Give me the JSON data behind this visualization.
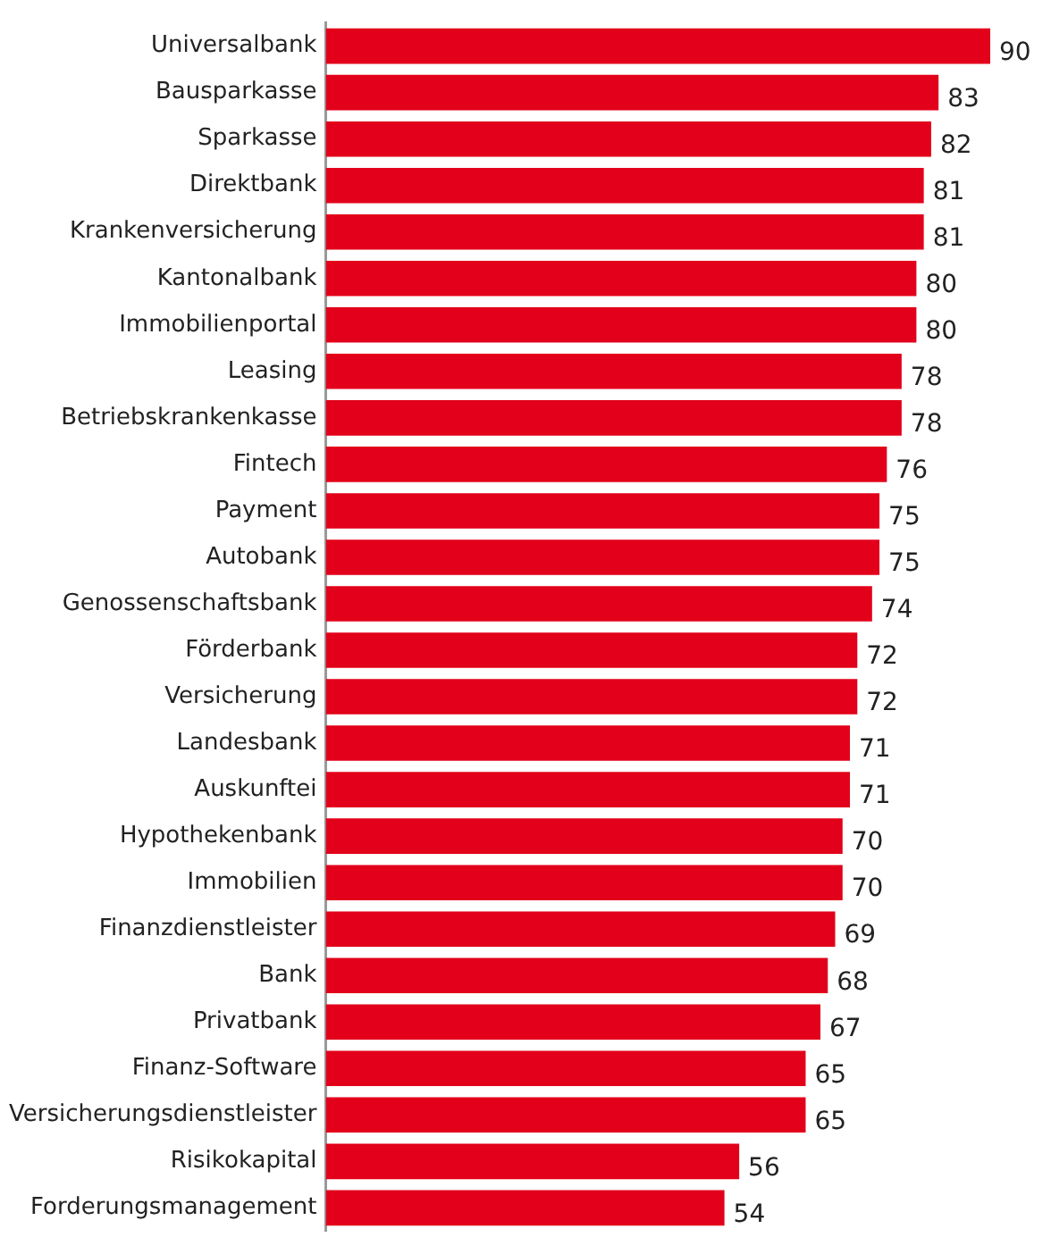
{
  "chart_data": {
    "type": "bar",
    "orientation": "horizontal",
    "categories": [
      "Universalbank",
      "Bausparkasse",
      "Sparkasse",
      "Direktbank",
      "Krankenversicherung",
      "Kantonalbank",
      "Immobilienportal",
      "Leasing",
      "Betriebskrankenkasse",
      "Fintech",
      "Payment",
      "Autobank",
      "Genossenschaftsbank",
      "Förderbank",
      "Versicherung",
      "Landesbank",
      "Auskunftei",
      "Hypothekenbank",
      "Immobilien",
      "Finanzdienstleister",
      "Bank",
      "Privatbank",
      "Finanz-Software",
      "Versicherungsdienstleister",
      "Risikokapital",
      "Forderungsmanagement"
    ],
    "values": [
      90,
      83,
      82,
      81,
      81,
      80,
      80,
      78,
      78,
      76,
      75,
      75,
      74,
      72,
      72,
      71,
      71,
      70,
      70,
      69,
      68,
      67,
      65,
      65,
      56,
      54
    ],
    "color": "#e2001a",
    "data_labels": true,
    "tick_labels": "y"
  }
}
